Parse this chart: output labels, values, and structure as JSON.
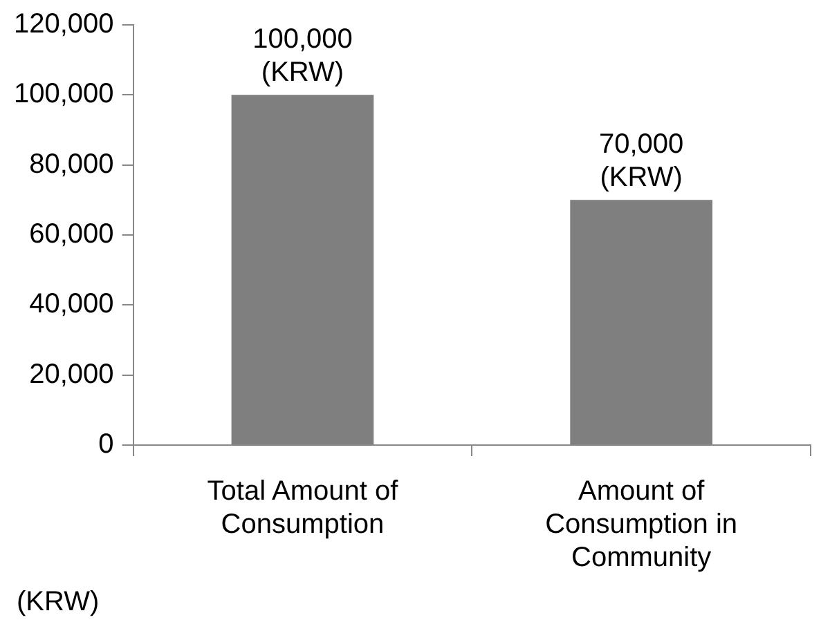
{
  "chart_data": {
    "type": "bar",
    "ylabel": "(KRW)",
    "categories": [
      "Total Amount of Consumption",
      "Amount of Consumption in Community"
    ],
    "values": [
      100000,
      70000
    ],
    "color": "#7f7f7f",
    "value_labels": [
      "100,000 (KRW)",
      "70,000 (KRW)"
    ],
    "ylim": [
      0,
      120000
    ],
    "yticks": [
      0,
      {
        "value": 20000,
        "label": "20,000"
      },
      {
        "value": 40000,
        "label": "40,000"
      },
      {
        "value": 60000,
        "label": "60,000"
      },
      {
        "value": 80000,
        "label": "80,000"
      },
      {
        "value": 100000,
        "label": "100,000"
      },
      {
        "value": 120000,
        "label": "120,000"
      }
    ],
    "grid": false,
    "legend": false
  }
}
